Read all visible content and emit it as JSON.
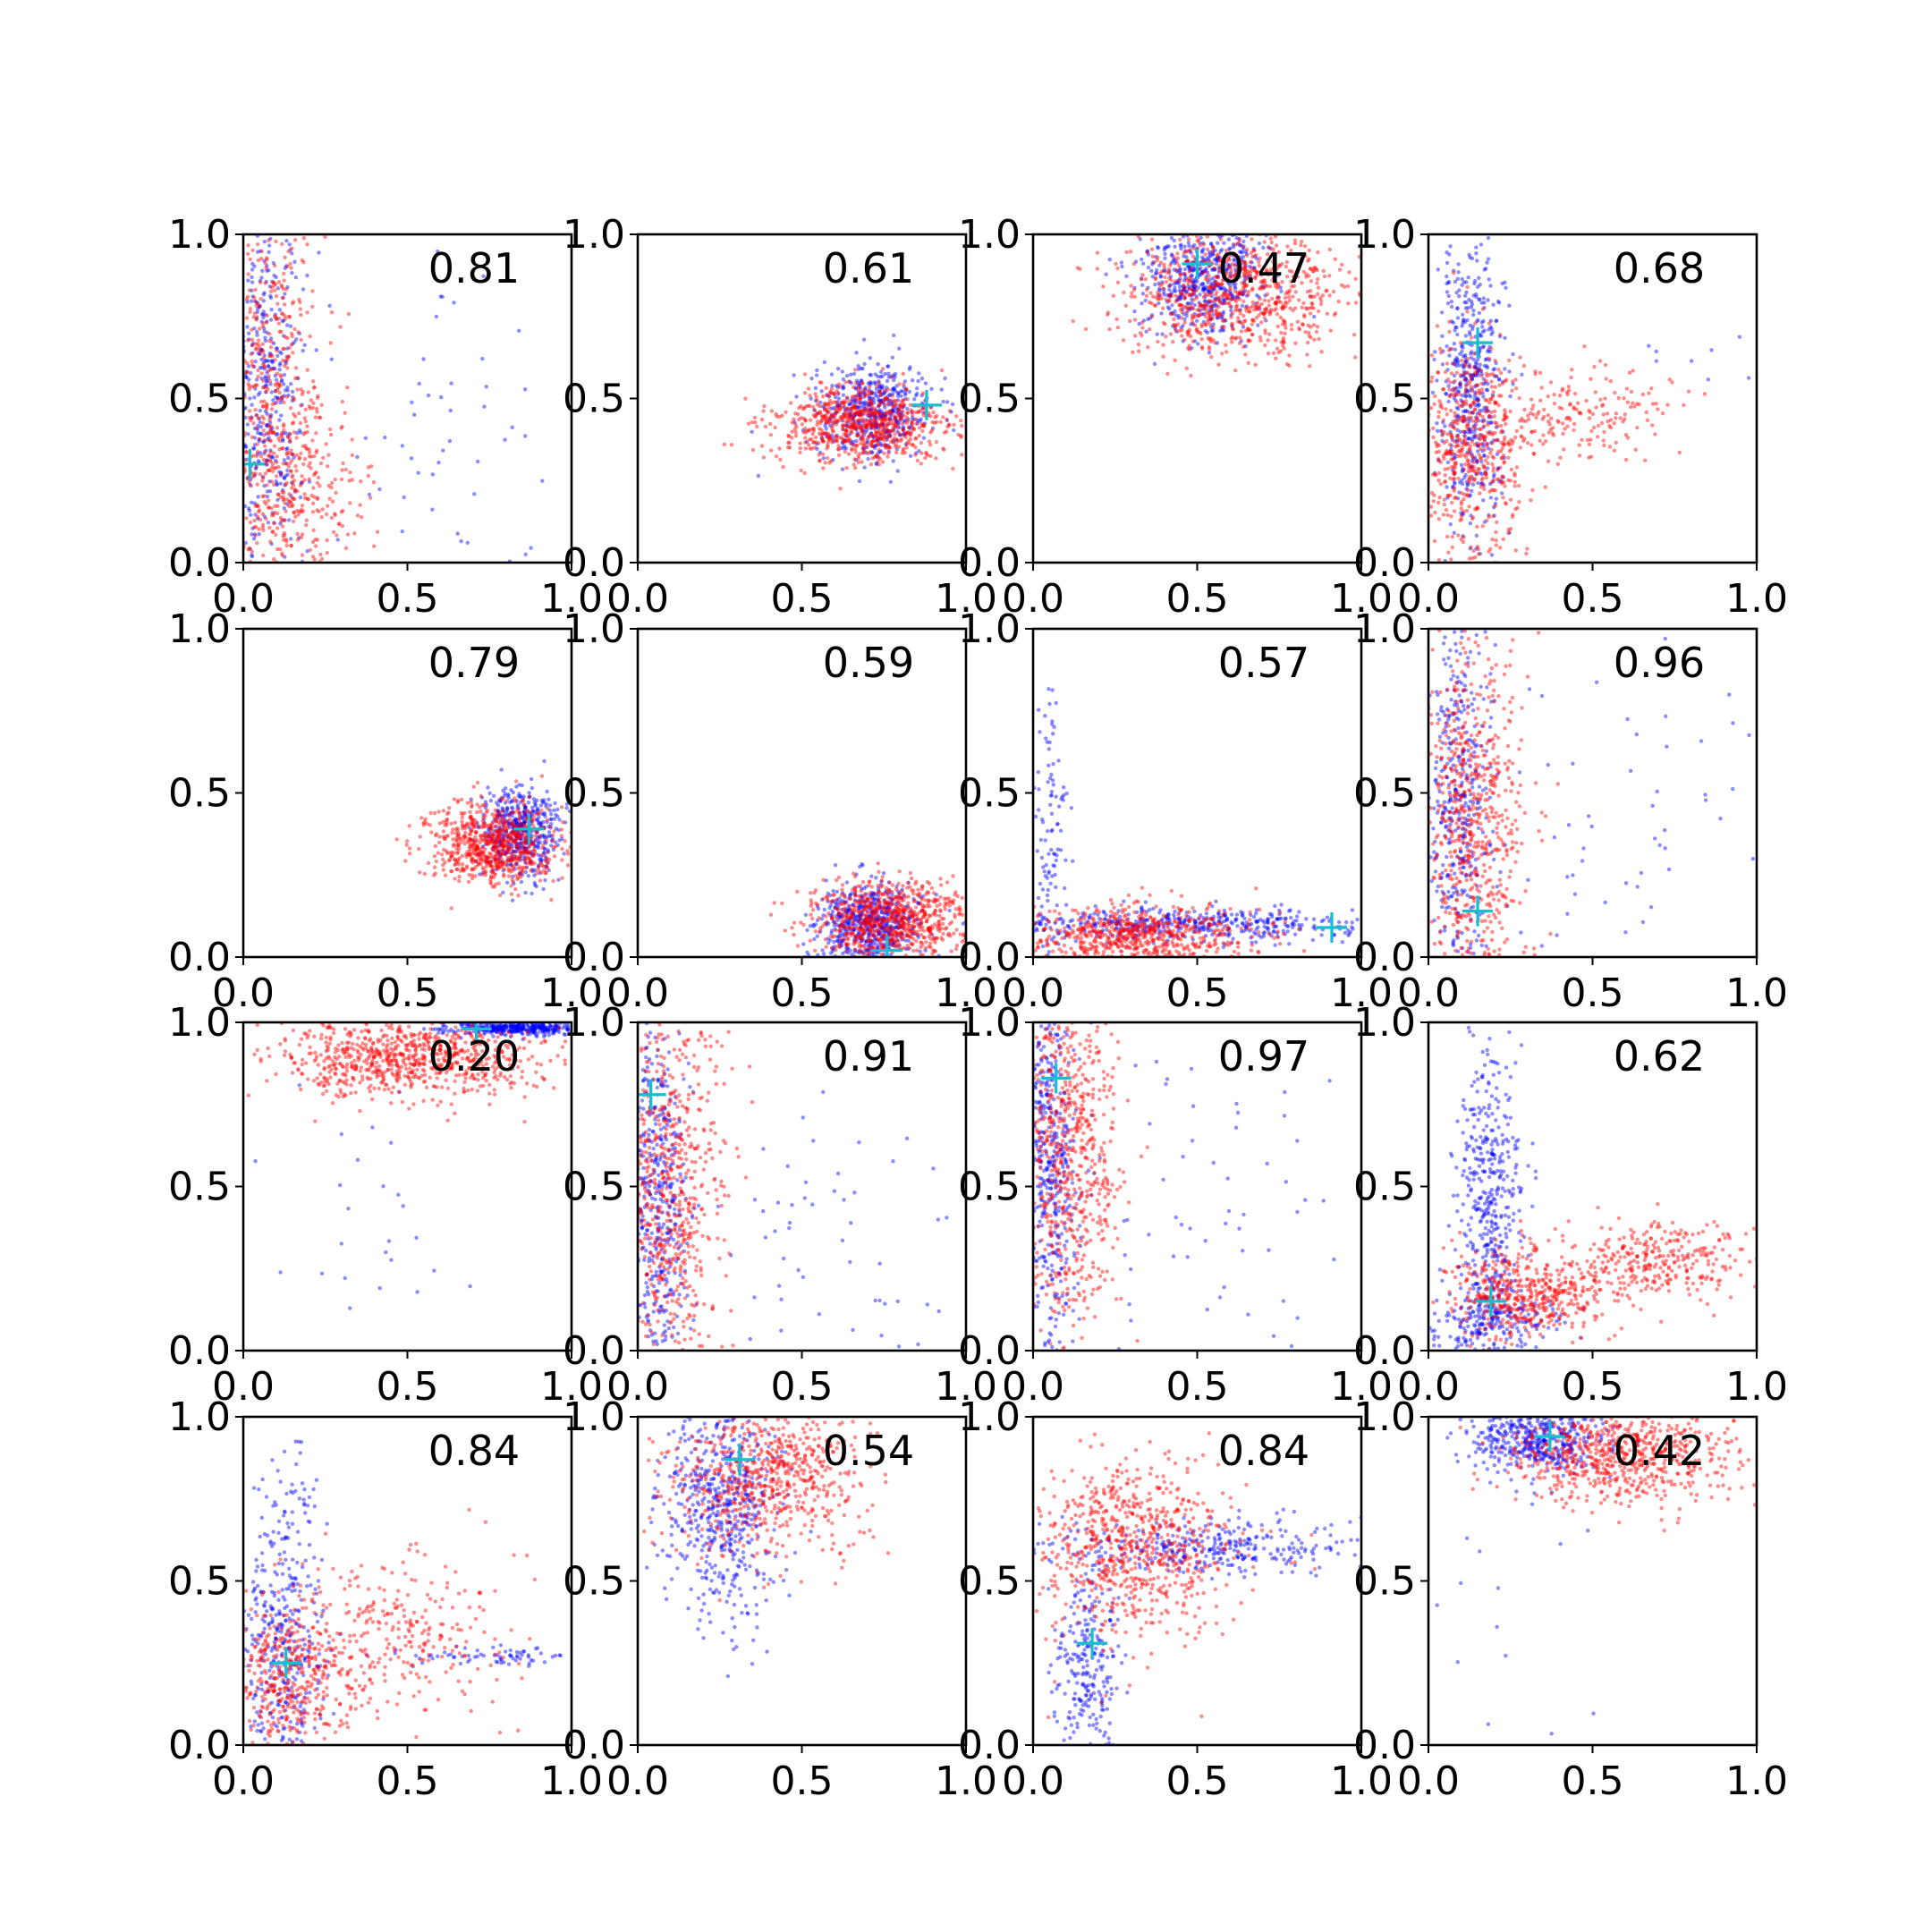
{
  "chart_data": {
    "type": "scatter",
    "title": "",
    "grid": false,
    "legend": "none",
    "rows": 4,
    "cols": 4,
    "xlim": [
      0.0,
      1.0
    ],
    "ylim": [
      0.0,
      1.0
    ],
    "xticks": [
      "0.0",
      "0.5",
      "1.0"
    ],
    "yticks": [
      "0.0",
      "0.5",
      "1.0"
    ],
    "colors": {
      "series_a": "#0000ff",
      "series_b": "#ff0000",
      "marker": "#17becf"
    },
    "series_names": [
      "blue",
      "red"
    ],
    "panels": [
      {
        "score": "0.81",
        "marker": [
          0.02,
          0.3
        ],
        "blue": [
          {
            "c": [
              0.07,
              0.55
            ],
            "s": [
              0.06,
              0.3
            ],
            "n": 420
          },
          {
            "c": [
              0.6,
              0.4
            ],
            "s": [
              0.25,
              0.3
            ],
            "n": 60
          }
        ],
        "red": [
          {
            "c": [
              0.09,
              0.45
            ],
            "s": [
              0.08,
              0.3
            ],
            "n": 600
          },
          {
            "c": [
              0.2,
              0.2
            ],
            "s": [
              0.1,
              0.12
            ],
            "n": 150
          }
        ]
      },
      {
        "score": "0.61",
        "marker": [
          0.88,
          0.48
        ],
        "blue": [
          {
            "c": [
              0.72,
              0.46
            ],
            "s": [
              0.09,
              0.07
            ],
            "n": 500
          }
        ],
        "red": [
          {
            "c": [
              0.68,
              0.42
            ],
            "s": [
              0.13,
              0.06
            ],
            "n": 750
          }
        ]
      },
      {
        "score": "0.47",
        "marker": [
          0.5,
          0.91
        ],
        "blue": [
          {
            "c": [
              0.52,
              0.87
            ],
            "s": [
              0.09,
              0.09
            ],
            "n": 550
          }
        ],
        "red": [
          {
            "c": [
              0.62,
              0.82
            ],
            "s": [
              0.17,
              0.09
            ],
            "n": 800
          }
        ]
      },
      {
        "score": "0.68",
        "marker": [
          0.15,
          0.67
        ],
        "blue": [
          {
            "c": [
              0.13,
              0.55
            ],
            "s": [
              0.05,
              0.22
            ],
            "n": 500
          },
          {
            "c": [
              0.8,
              0.6
            ],
            "s": [
              0.1,
              0.1
            ],
            "n": 8
          }
        ],
        "red": [
          {
            "c": [
              0.13,
              0.35
            ],
            "s": [
              0.08,
              0.17
            ],
            "n": 550
          },
          {
            "c": [
              0.45,
              0.45
            ],
            "s": [
              0.15,
              0.07
            ],
            "n": 200
          }
        ]
      },
      {
        "score": "0.79",
        "marker": [
          0.87,
          0.39
        ],
        "blue": [
          {
            "c": [
              0.84,
              0.38
            ],
            "s": [
              0.06,
              0.07
            ],
            "n": 500
          }
        ],
        "red": [
          {
            "c": [
              0.76,
              0.34
            ],
            "s": [
              0.1,
              0.06
            ],
            "n": 750
          }
        ]
      },
      {
        "score": "0.59",
        "marker": [
          0.76,
          0.02
        ],
        "blue": [
          {
            "c": [
              0.7,
              0.1
            ],
            "s": [
              0.08,
              0.06
            ],
            "n": 600
          }
        ],
        "red": [
          {
            "c": [
              0.77,
              0.11
            ],
            "s": [
              0.12,
              0.06
            ],
            "n": 800
          }
        ]
      },
      {
        "score": "0.57",
        "marker": [
          0.91,
          0.09
        ],
        "blue": [
          {
            "c": [
              0.45,
              0.1
            ],
            "s": [
              0.28,
              0.025
            ],
            "n": 450
          },
          {
            "c": [
              0.05,
              0.35
            ],
            "s": [
              0.03,
              0.25
            ],
            "n": 120
          }
        ],
        "red": [
          {
            "c": [
              0.3,
              0.06
            ],
            "s": [
              0.18,
              0.05
            ],
            "n": 700
          }
        ]
      },
      {
        "score": "0.96",
        "marker": [
          0.15,
          0.14
        ],
        "blue": [
          {
            "c": [
              0.09,
              0.5
            ],
            "s": [
              0.05,
              0.3
            ],
            "n": 400
          },
          {
            "c": [
              0.6,
              0.4
            ],
            "s": [
              0.25,
              0.3
            ],
            "n": 60
          }
        ],
        "red": [
          {
            "c": [
              0.13,
              0.4
            ],
            "s": [
              0.08,
              0.27
            ],
            "n": 700
          }
        ]
      },
      {
        "score": "0.20",
        "marker": [
          0.71,
          0.98
        ],
        "blue": [
          {
            "c": [
              0.85,
              0.98
            ],
            "s": [
              0.12,
              0.01
            ],
            "n": 400
          },
          {
            "c": [
              0.3,
              0.4
            ],
            "s": [
              0.2,
              0.25
            ],
            "n": 30
          }
        ],
        "red": [
          {
            "c": [
              0.5,
              0.89
            ],
            "s": [
              0.2,
              0.06
            ],
            "n": 800
          }
        ]
      },
      {
        "score": "0.91",
        "marker": [
          0.04,
          0.78
        ],
        "blue": [
          {
            "c": [
              0.06,
              0.45
            ],
            "s": [
              0.05,
              0.28
            ],
            "n": 450
          },
          {
            "c": [
              0.55,
              0.3
            ],
            "s": [
              0.25,
              0.25
            ],
            "n": 70
          }
        ],
        "red": [
          {
            "c": [
              0.09,
              0.5
            ],
            "s": [
              0.08,
              0.28
            ],
            "n": 700
          }
        ]
      },
      {
        "score": "0.97",
        "marker": [
          0.07,
          0.83
        ],
        "blue": [
          {
            "c": [
              0.05,
              0.5
            ],
            "s": [
              0.04,
              0.3
            ],
            "n": 450
          },
          {
            "c": [
              0.55,
              0.45
            ],
            "s": [
              0.25,
              0.3
            ],
            "n": 70
          }
        ],
        "red": [
          {
            "c": [
              0.1,
              0.6
            ],
            "s": [
              0.08,
              0.27
            ],
            "n": 700
          }
        ]
      },
      {
        "score": "0.62",
        "marker": [
          0.19,
          0.15
        ],
        "blue": [
          {
            "c": [
              0.18,
              0.45
            ],
            "s": [
              0.05,
              0.25
            ],
            "n": 450
          },
          {
            "c": [
              0.2,
              0.08
            ],
            "s": [
              0.1,
              0.05
            ],
            "n": 200
          }
        ],
        "red": [
          {
            "c": [
              0.3,
              0.17
            ],
            "s": [
              0.12,
              0.07
            ],
            "n": 500
          },
          {
            "c": [
              0.7,
              0.27
            ],
            "s": [
              0.14,
              0.06
            ],
            "n": 300
          }
        ]
      },
      {
        "score": "0.84",
        "marker": [
          0.13,
          0.25
        ],
        "blue": [
          {
            "c": [
              0.12,
              0.3
            ],
            "s": [
              0.06,
              0.28
            ],
            "n": 450
          },
          {
            "c": [
              0.75,
              0.27
            ],
            "s": [
              0.15,
              0.015
            ],
            "n": 70
          }
        ],
        "red": [
          {
            "c": [
              0.15,
              0.22
            ],
            "s": [
              0.1,
              0.11
            ],
            "n": 450
          },
          {
            "c": [
              0.5,
              0.33
            ],
            "s": [
              0.15,
              0.12
            ],
            "n": 250
          }
        ]
      },
      {
        "score": "0.54",
        "marker": [
          0.31,
          0.87
        ],
        "blue": [
          {
            "c": [
              0.25,
              0.72
            ],
            "s": [
              0.09,
              0.17
            ],
            "n": 550
          }
        ],
        "red": [
          {
            "c": [
              0.4,
              0.82
            ],
            "s": [
              0.15,
              0.12
            ],
            "n": 700
          }
        ]
      },
      {
        "score": "0.84",
        "marker": [
          0.18,
          0.31
        ],
        "blue": [
          {
            "c": [
              0.55,
              0.6
            ],
            "s": [
              0.25,
              0.04
            ],
            "n": 350
          },
          {
            "c": [
              0.17,
              0.25
            ],
            "s": [
              0.05,
              0.15
            ],
            "n": 250
          }
        ],
        "red": [
          {
            "c": [
              0.3,
              0.6
            ],
            "s": [
              0.15,
              0.14
            ],
            "n": 750
          }
        ]
      },
      {
        "score": "0.42",
        "marker": [
          0.37,
          0.94
        ],
        "blue": [
          {
            "c": [
              0.33,
              0.93
            ],
            "s": [
              0.1,
              0.05
            ],
            "n": 450
          },
          {
            "c": [
              0.2,
              0.5
            ],
            "s": [
              0.2,
              0.25
            ],
            "n": 15
          }
        ],
        "red": [
          {
            "c": [
              0.6,
              0.88
            ],
            "s": [
              0.17,
              0.07
            ],
            "n": 700
          }
        ]
      }
    ]
  }
}
